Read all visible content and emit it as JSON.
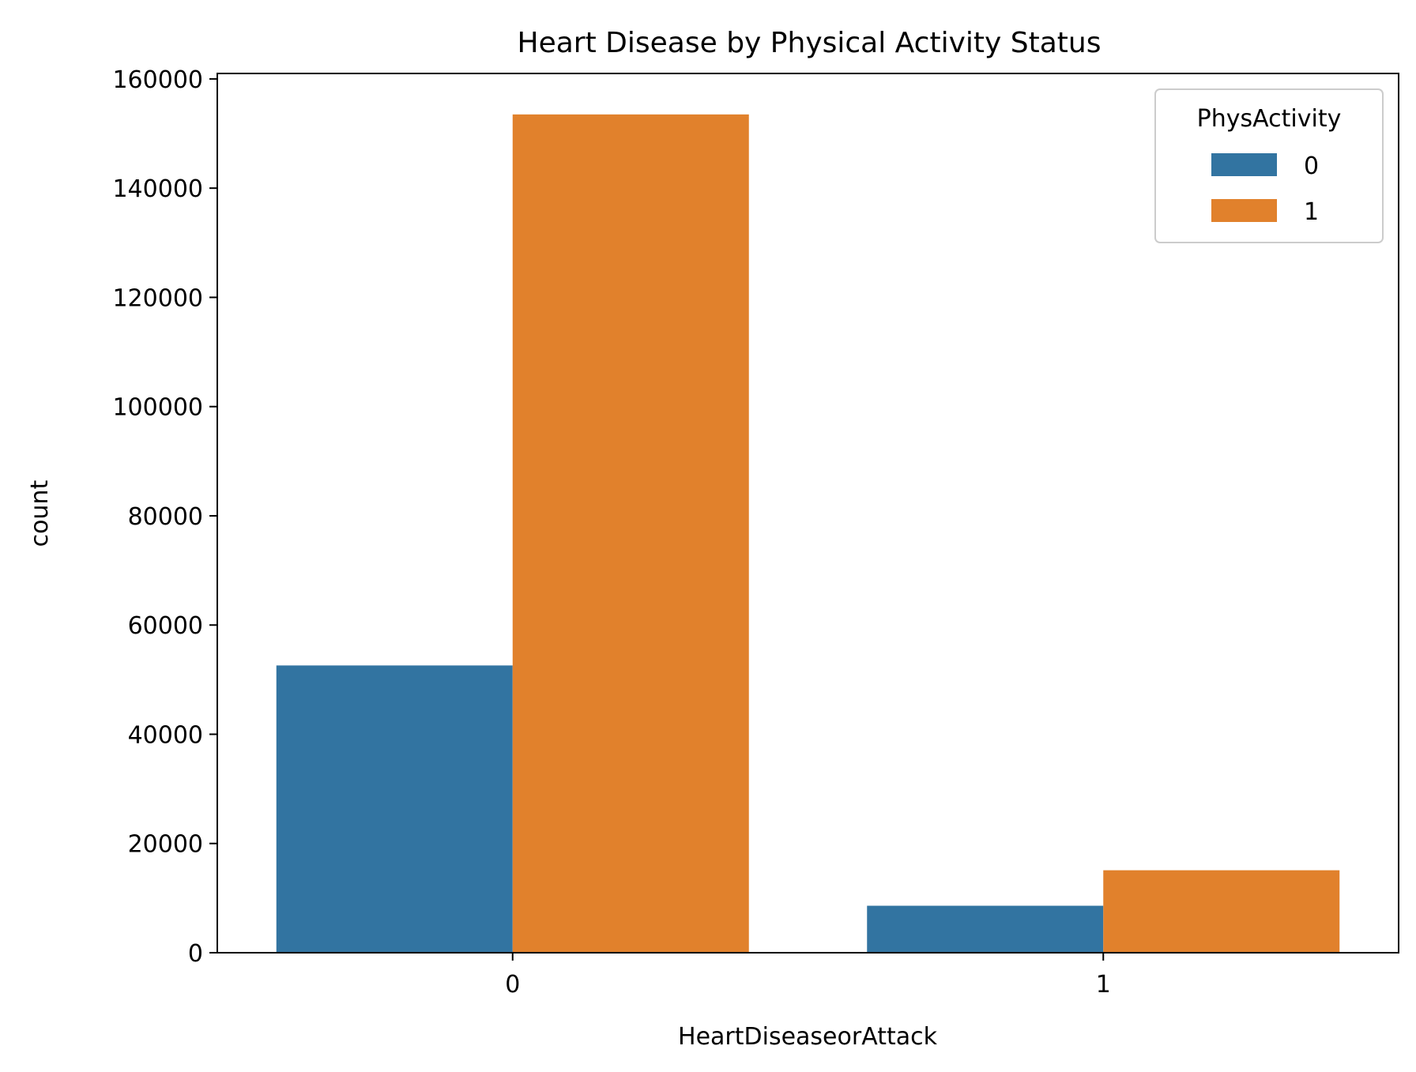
{
  "chart_data": {
    "type": "bar",
    "title": "Heart Disease by Physical Activity Status",
    "xlabel": "HeartDiseaseorAttack",
    "ylabel": "count",
    "categories": [
      "0",
      "1"
    ],
    "series": [
      {
        "name": "0",
        "values": [
          52600,
          8600
        ],
        "color": "#3274a1"
      },
      {
        "name": "1",
        "values": [
          153500,
          15100
        ],
        "color": "#e1812c"
      }
    ],
    "ylim": [
      0,
      161000
    ],
    "yticks": [
      0,
      20000,
      40000,
      60000,
      80000,
      100000,
      120000,
      140000,
      160000
    ],
    "ytick_labels": [
      "0",
      "20000",
      "40000",
      "60000",
      "80000",
      "100000",
      "120000",
      "140000",
      "160000"
    ],
    "legend": {
      "title": "PhysActivity",
      "position": "upper-right"
    },
    "grid": false
  }
}
